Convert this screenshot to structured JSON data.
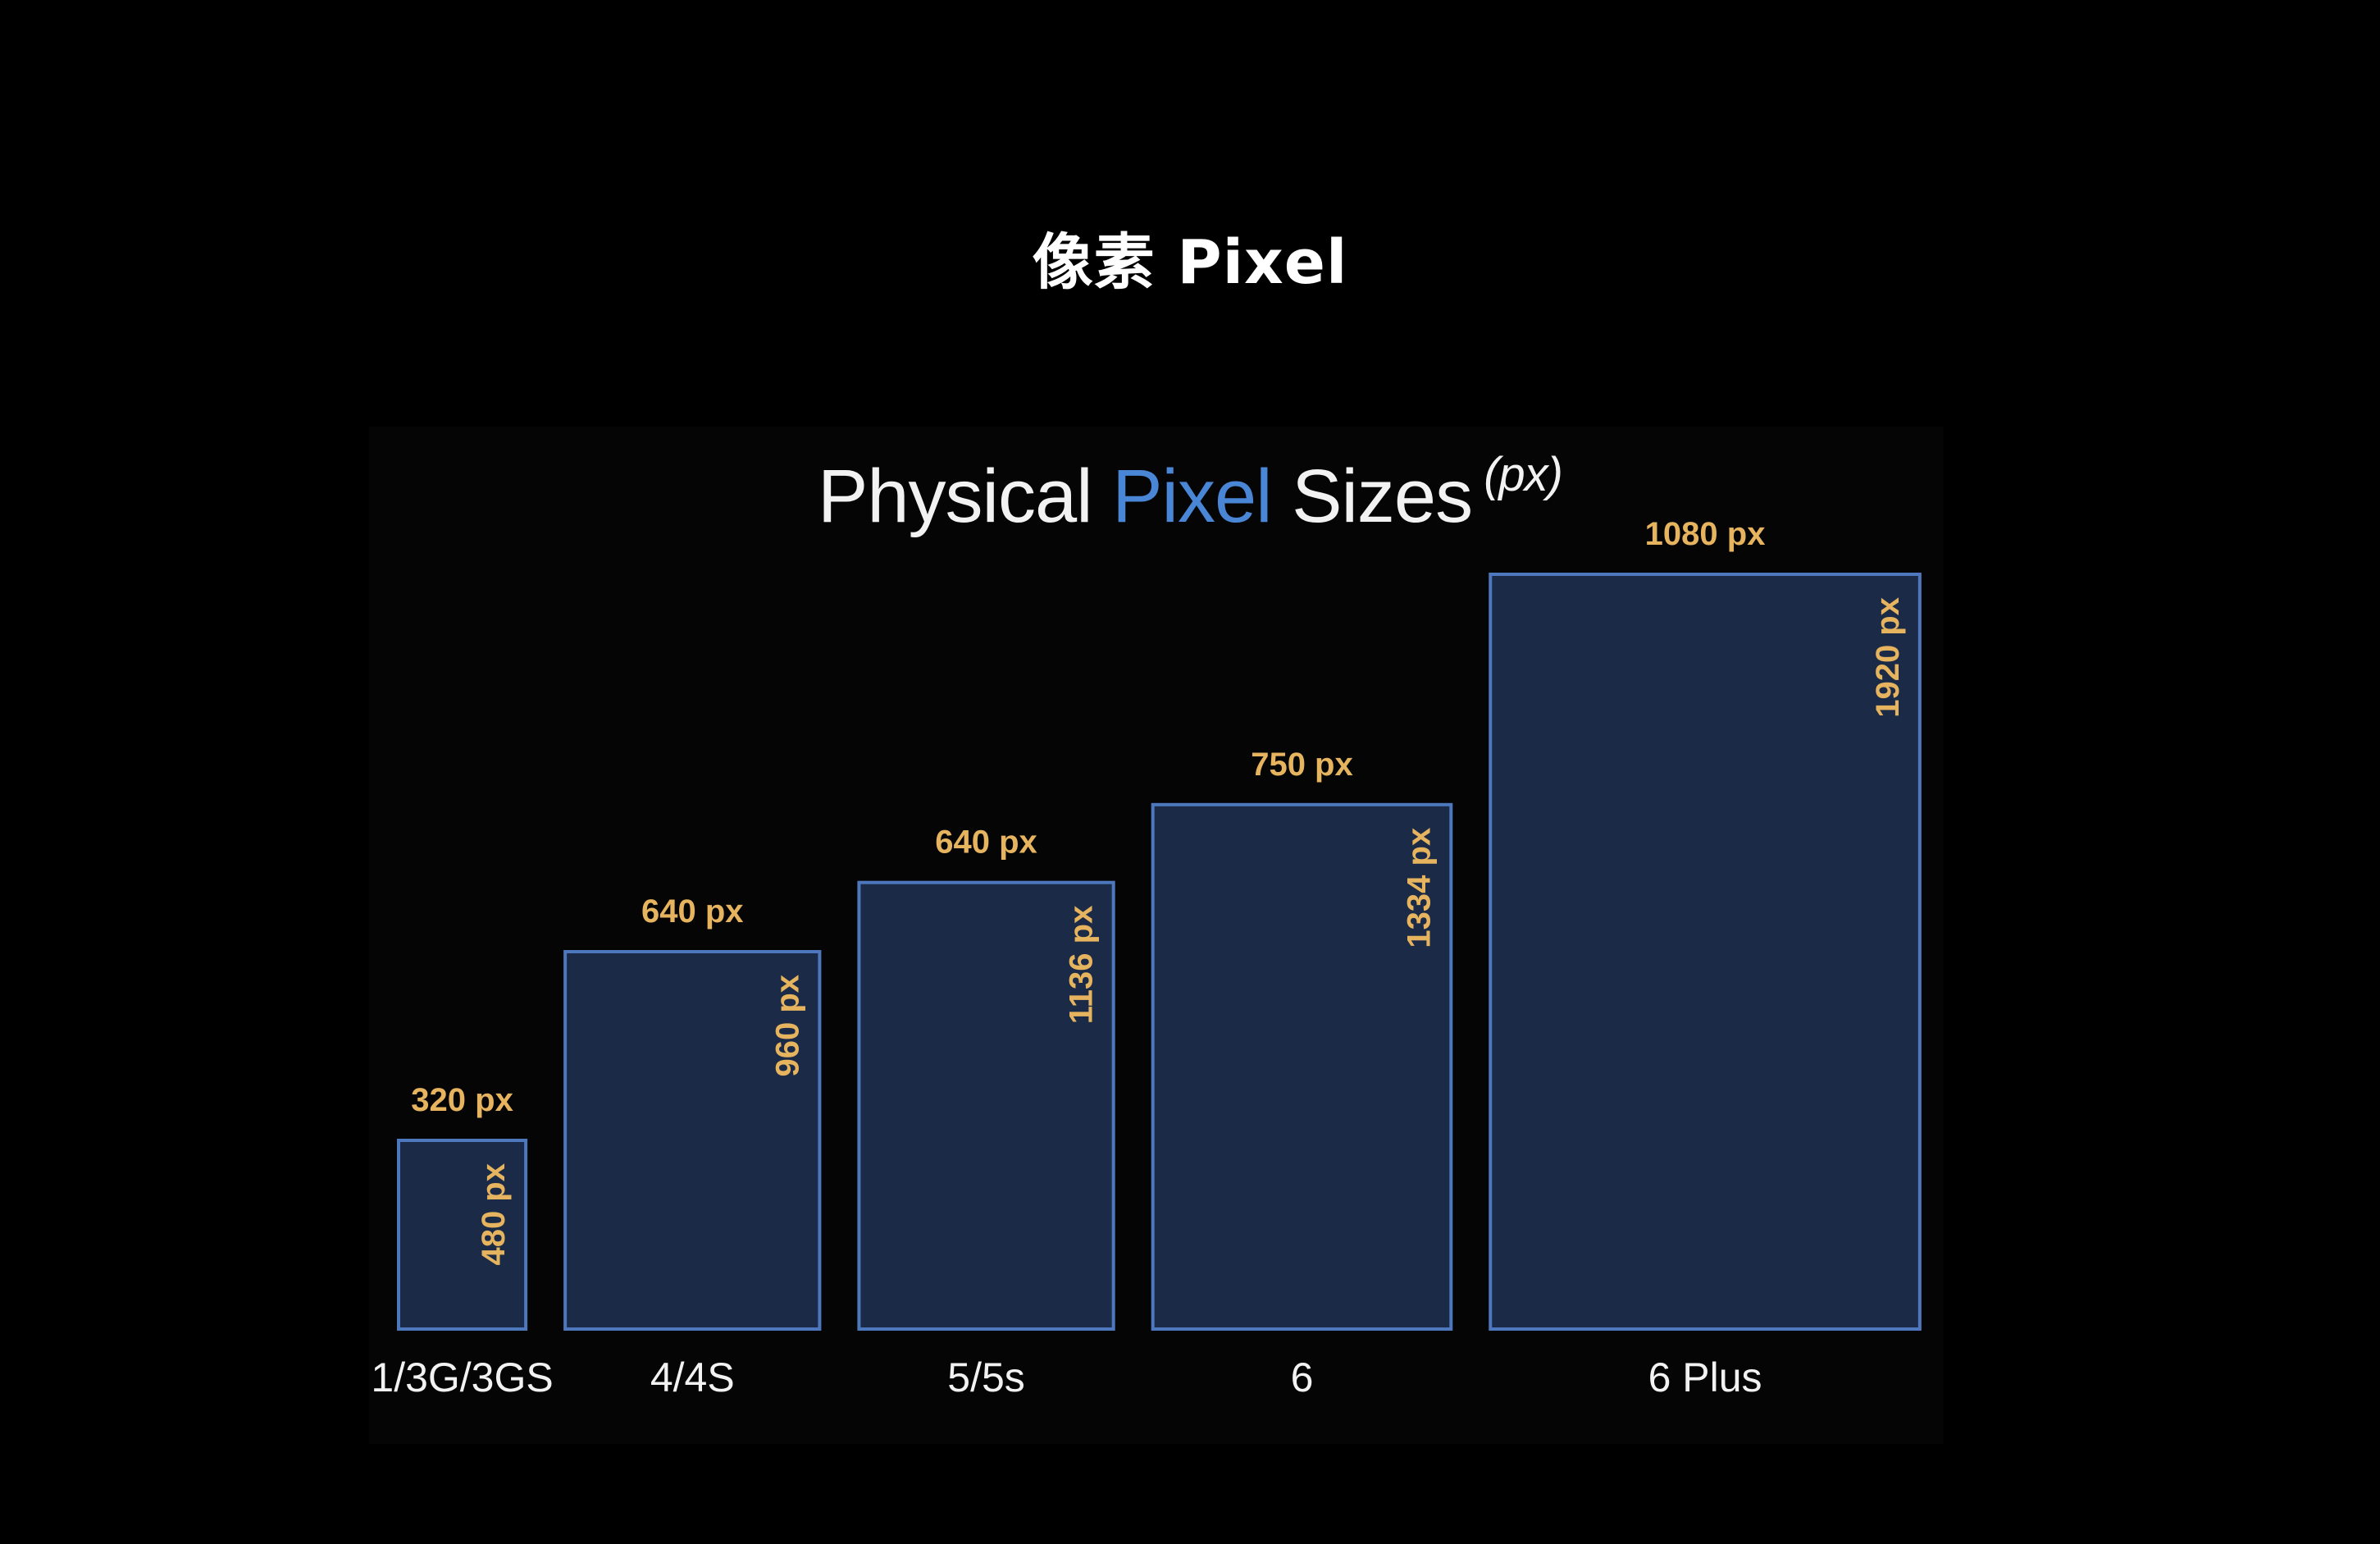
{
  "header": {
    "title": "像素 Pixel"
  },
  "chart_data": {
    "type": "bar",
    "title_parts": [
      "Physical ",
      "Pixel",
      " Sizes",
      "(px)"
    ],
    "accent_color": "#4a86d6",
    "bar_fill": "#1b2b47",
    "bar_stroke": "#4d78bd",
    "label_color": "#e6b45e",
    "categories": [
      "1/3G/3GS",
      "4/4S",
      "5/5s",
      "6",
      "6 Plus"
    ],
    "series": [
      {
        "values": [
          320,
          640,
          640,
          750,
          1080
        ]
      },
      {
        "values": [
          480,
          960,
          1136,
          1334,
          1920
        ]
      }
    ],
    "width_labels": [
      "320 px",
      "640 px",
      "640 px",
      "750 px",
      "1080 px"
    ],
    "height_labels": [
      "480 px",
      "960 px",
      "1136 px",
      "1334 px",
      "1920 px"
    ]
  }
}
